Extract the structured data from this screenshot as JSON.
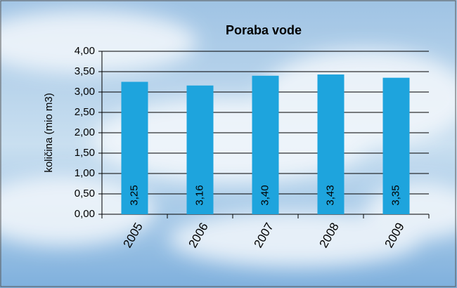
{
  "chart_data": {
    "type": "bar",
    "title": "Poraba vode",
    "y_label": "količina (mio m3)",
    "categories": [
      "2005",
      "2006",
      "2007",
      "2008",
      "2009"
    ],
    "values": [
      3.25,
      3.16,
      3.4,
      3.43,
      3.35
    ],
    "value_labels": [
      "3,25",
      "3,16",
      "3,40",
      "3,43",
      "3,35"
    ],
    "color": "#1ea4dd",
    "ylim": [
      0,
      4
    ],
    "yticks": [
      {
        "value": 0,
        "label": "0,00"
      },
      {
        "value": 0.5,
        "label": "0,50"
      },
      {
        "value": 1,
        "label": "1,00"
      },
      {
        "value": 1.5,
        "label": "1,50"
      },
      {
        "value": 2,
        "label": "2,00"
      },
      {
        "value": 2.5,
        "label": "2,50"
      },
      {
        "value": 3,
        "label": "3,00"
      },
      {
        "value": 3.5,
        "label": "3,50"
      },
      {
        "value": 4,
        "label": "4,00"
      }
    ],
    "grid": true
  }
}
